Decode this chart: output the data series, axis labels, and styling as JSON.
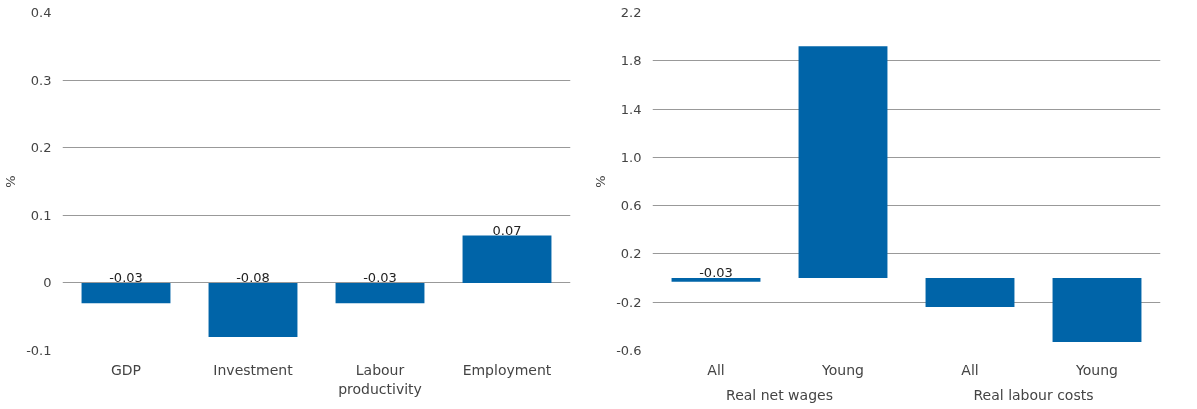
{
  "chart_data": [
    {
      "type": "bar",
      "ylabel": "%",
      "categories": [
        "GDP",
        "Investment",
        "Labour\nproductivity",
        "Employment"
      ],
      "values": [
        -0.03,
        -0.08,
        -0.03,
        0.07
      ],
      "color": "#0064a8",
      "data_labels": true,
      "ylim": [
        -0.1,
        0.4
      ],
      "yticks": [
        -0.1,
        0,
        0.1,
        0.2,
        0.3,
        0.4
      ],
      "grid": "y"
    },
    {
      "type": "bar",
      "ylabel": "%",
      "categories": [
        "All",
        "Young",
        "All",
        "Young"
      ],
      "annotations": [
        "Real net wages",
        "Real labour costs"
      ],
      "values": [
        -0.03,
        1.92,
        -0.24,
        -0.53
      ],
      "value_labels": [
        "-0.03",
        null,
        null,
        null
      ],
      "color": "#0064a8",
      "ylim": [
        -0.6,
        2.2
      ],
      "yticks": [
        -0.6,
        -0.2,
        0.2,
        0.6,
        {
          "value": 1.0,
          "label": "1.0"
        },
        1.4,
        1.8,
        2.2
      ],
      "grid": "y"
    }
  ]
}
